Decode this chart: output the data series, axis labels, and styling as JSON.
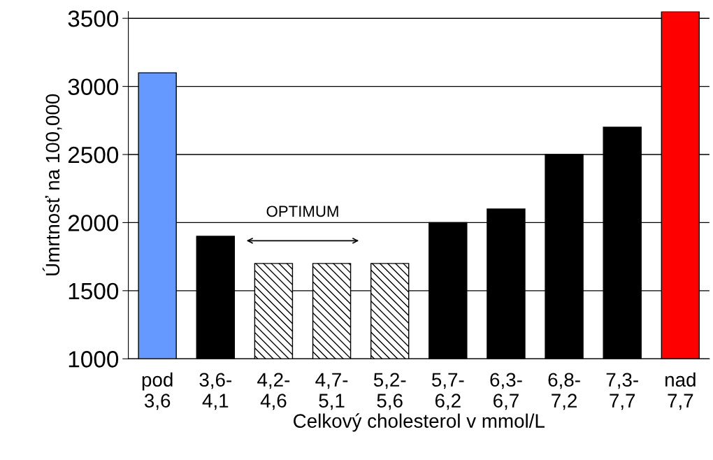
{
  "chart_data": {
    "type": "bar",
    "xlabel": "Celkový cholesterol v mmol/L",
    "ylabel": "Úmrtnosť na 100,000",
    "categories": [
      "pod\n3,6",
      "3,6-\n4,1",
      "4,2-\n4,6",
      "4,7-\n5,1",
      "5,2-\n5,6",
      "5,7-\n6,2",
      "6,3-\n6,7",
      "6,8-\n7,2",
      "7,3-\n7,7",
      "nad\n7,7"
    ],
    "values": [
      3100,
      1900,
      1700,
      1700,
      1700,
      2000,
      2100,
      2500,
      2700,
      3550
    ],
    "colors": [
      "#6699ff",
      "#000000",
      "#ffffff",
      "#ffffff",
      "#ffffff",
      "#000000",
      "#000000",
      "#000000",
      "#000000",
      "#ff0000"
    ],
    "ylim": [
      1000,
      3550
    ],
    "yticks": [
      1000,
      1500,
      2000,
      2500,
      3000,
      3500
    ],
    "grid": "y",
    "annotations": [
      "OPTIMUM"
    ]
  }
}
